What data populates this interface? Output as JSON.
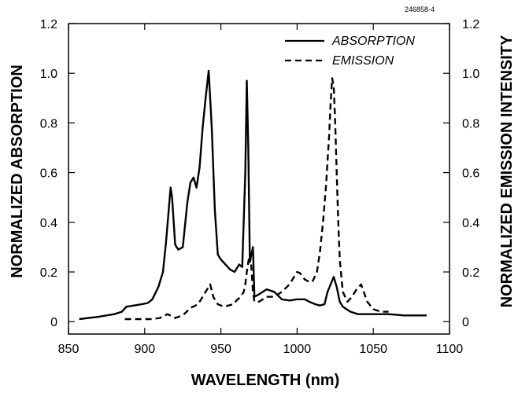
{
  "figure_id": "246858-4",
  "chart_data": {
    "type": "line",
    "title": "",
    "xlabel": "WAVELENGTH (nm)",
    "ylabel": "NORMALIZED ABSORPTION",
    "y2label": "NORMALIZED EMISSION INTENSITY",
    "xlim": [
      850,
      1100
    ],
    "ylim": [
      -0.05,
      1.2
    ],
    "y2lim": [
      -0.05,
      1.2
    ],
    "xticks": [
      850,
      900,
      950,
      1000,
      1050,
      1100
    ],
    "xtick_labels": [
      "850",
      "900",
      "950",
      "1000",
      "1050",
      "1100"
    ],
    "yticks": [
      0,
      0.2,
      0.4,
      0.6,
      0.8,
      1.0,
      1.2
    ],
    "ytick_labels": [
      "0",
      "0.2",
      "0.4",
      "0.6",
      "0.8",
      "1.0",
      "1.2"
    ],
    "y2ticks": [
      0,
      0.2,
      0.4,
      0.6,
      0.8,
      1.0,
      1.2
    ],
    "y2tick_labels": [
      "0",
      "0.2",
      "0.4",
      "0.6",
      "0.8",
      "1.0",
      "1.2"
    ],
    "grid": false,
    "legend_position": "top-right",
    "series": [
      {
        "name": "ABSORPTION",
        "style": "solid",
        "axis": "left",
        "color": "#000000",
        "x": [
          857,
          870,
          880,
          885,
          888,
          893,
          898,
          902,
          905,
          909,
          912,
          914,
          917,
          918,
          920,
          922,
          925,
          928,
          930,
          932,
          934,
          936,
          938,
          940,
          942,
          944,
          946,
          948,
          950,
          953,
          956,
          959,
          962,
          964,
          966,
          967,
          968,
          969,
          970,
          971,
          972,
          975,
          980,
          985,
          990,
          995,
          1000,
          1005,
          1008,
          1012,
          1015,
          1018,
          1020,
          1022,
          1024,
          1026,
          1028,
          1030,
          1035,
          1040,
          1050,
          1060,
          1070,
          1085
        ],
        "y": [
          0.01,
          0.02,
          0.03,
          0.04,
          0.06,
          0.065,
          0.07,
          0.075,
          0.09,
          0.14,
          0.2,
          0.32,
          0.54,
          0.5,
          0.31,
          0.29,
          0.3,
          0.48,
          0.56,
          0.58,
          0.54,
          0.62,
          0.78,
          0.9,
          1.01,
          0.78,
          0.45,
          0.27,
          0.25,
          0.23,
          0.21,
          0.2,
          0.23,
          0.22,
          0.6,
          0.97,
          0.7,
          0.24,
          0.27,
          0.3,
          0.1,
          0.11,
          0.13,
          0.12,
          0.09,
          0.085,
          0.09,
          0.09,
          0.08,
          0.07,
          0.065,
          0.07,
          0.12,
          0.15,
          0.18,
          0.14,
          0.08,
          0.06,
          0.04,
          0.03,
          0.03,
          0.03,
          0.025,
          0.025
        ]
      },
      {
        "name": "EMISSION",
        "style": "dashed",
        "axis": "right",
        "color": "#000000",
        "x": [
          887,
          895,
          905,
          910,
          915,
          920,
          925,
          930,
          935,
          940,
          943,
          945,
          948,
          952,
          955,
          958,
          961,
          963,
          965,
          966,
          967,
          968,
          969,
          970,
          971,
          972,
          975,
          980,
          985,
          990,
          995,
          1000,
          1002,
          1005,
          1008,
          1010,
          1013,
          1015,
          1017,
          1019,
          1021,
          1022,
          1023,
          1024,
          1025,
          1026,
          1027,
          1028,
          1030,
          1033,
          1036,
          1039,
          1042,
          1046,
          1050,
          1055,
          1060
        ],
        "y": [
          0.01,
          0.01,
          0.01,
          0.015,
          0.03,
          0.015,
          0.025,
          0.055,
          0.07,
          0.12,
          0.15,
          0.1,
          0.07,
          0.06,
          0.065,
          0.07,
          0.09,
          0.1,
          0.12,
          0.15,
          0.2,
          0.24,
          0.27,
          0.22,
          0.12,
          0.08,
          0.08,
          0.1,
          0.1,
          0.12,
          0.15,
          0.2,
          0.195,
          0.17,
          0.16,
          0.16,
          0.2,
          0.28,
          0.4,
          0.55,
          0.75,
          0.88,
          0.98,
          0.95,
          0.8,
          0.6,
          0.4,
          0.25,
          0.12,
          0.08,
          0.1,
          0.13,
          0.15,
          0.08,
          0.05,
          0.04,
          0.04
        ]
      }
    ]
  }
}
